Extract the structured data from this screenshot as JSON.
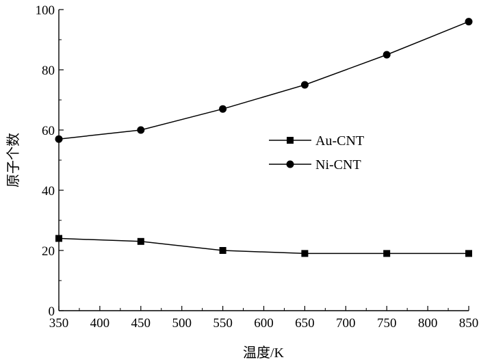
{
  "chart_data": {
    "type": "line",
    "title": "",
    "xlabel": "温度/K",
    "ylabel": "原子个数",
    "x": [
      350,
      450,
      550,
      650,
      750,
      850
    ],
    "xlim": [
      350,
      850
    ],
    "ylim": [
      0,
      100
    ],
    "xticks": [
      350,
      400,
      450,
      500,
      550,
      600,
      650,
      700,
      750,
      800,
      850
    ],
    "yticks": [
      0,
      20,
      40,
      60,
      80,
      100
    ],
    "grid": false,
    "legend_position": "center-right",
    "series": [
      {
        "name": "Au-CNT",
        "marker": "square",
        "color": "#000000",
        "values": [
          24,
          23,
          20,
          19,
          19,
          19
        ]
      },
      {
        "name": "Ni-CNT",
        "marker": "circle",
        "color": "#000000",
        "values": [
          57,
          60,
          67,
          75,
          85,
          96
        ]
      }
    ]
  }
}
